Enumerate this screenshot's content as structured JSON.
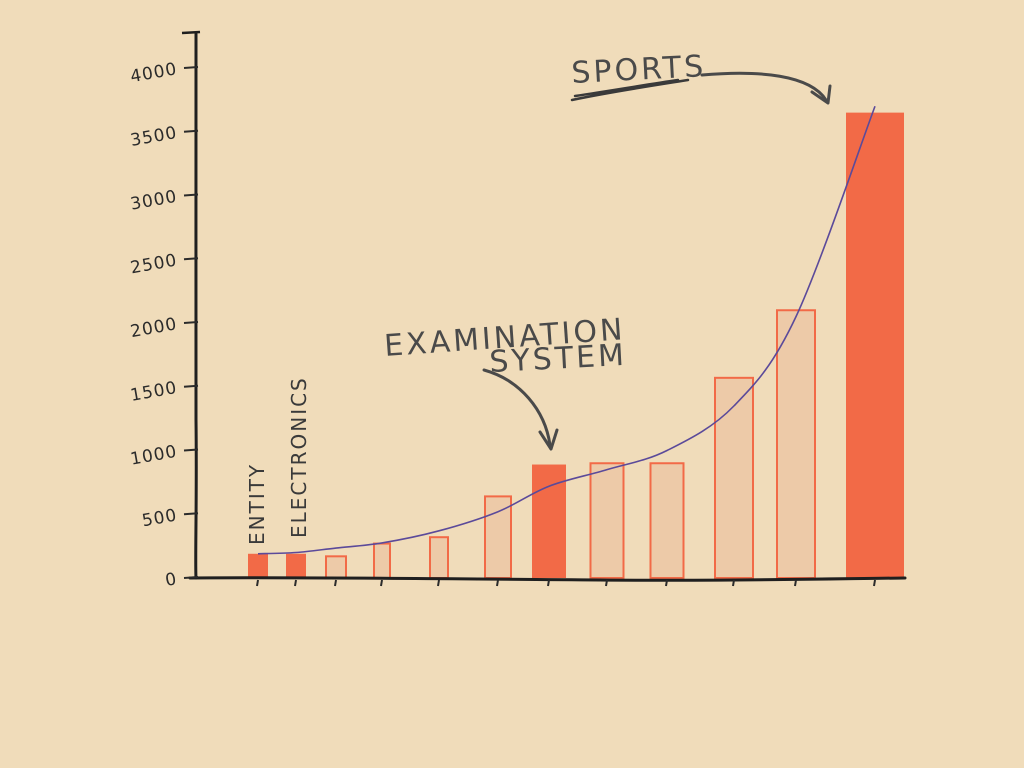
{
  "chart_data": {
    "type": "bar",
    "title": "",
    "xlabel": "",
    "ylabel": "",
    "ylim": [
      0,
      4000
    ],
    "yticks": [
      0,
      500,
      1000,
      1500,
      2000,
      2500,
      3000,
      3500,
      4000
    ],
    "ytick_labels": [
      "0",
      "500",
      "1000",
      "1500",
      "2000",
      "2500",
      "3000",
      "3500",
      "4000"
    ],
    "values": [
      190,
      190,
      170,
      270,
      320,
      640,
      890,
      900,
      900,
      1570,
      2100,
      3650
    ],
    "bar_styles": [
      "solid",
      "solid",
      "outline",
      "outline",
      "outline",
      "outline",
      "solid",
      "outline",
      "outline",
      "outline",
      "outline",
      "solid"
    ],
    "trend": [
      [
        0,
        190
      ],
      [
        1,
        200
      ],
      [
        2,
        235
      ],
      [
        3,
        275
      ],
      [
        4,
        370
      ],
      [
        5,
        520
      ],
      [
        6,
        720
      ],
      [
        7,
        850
      ],
      [
        8,
        1000
      ],
      [
        9,
        1350
      ],
      [
        10,
        2050
      ],
      [
        11,
        3700
      ]
    ],
    "grid": false,
    "annotations": [
      {
        "text": "ENTITY",
        "target": 0
      },
      {
        "text": "ELECTRONICS",
        "target": 1
      },
      {
        "text": "EXAMINATION",
        "target": 6
      },
      {
        "text": "SYSTEM",
        "target": 6
      },
      {
        "text": "SPORTS",
        "target": 11
      }
    ],
    "colors": {
      "background": "#F0DCBA",
      "solid_bar": "#F26A47",
      "outline_bar_fill": "#EDCAA8",
      "outline_bar_stroke": "#F26A47",
      "trend_line": "#5B4A9A",
      "ink": "#2b2b2b"
    }
  }
}
